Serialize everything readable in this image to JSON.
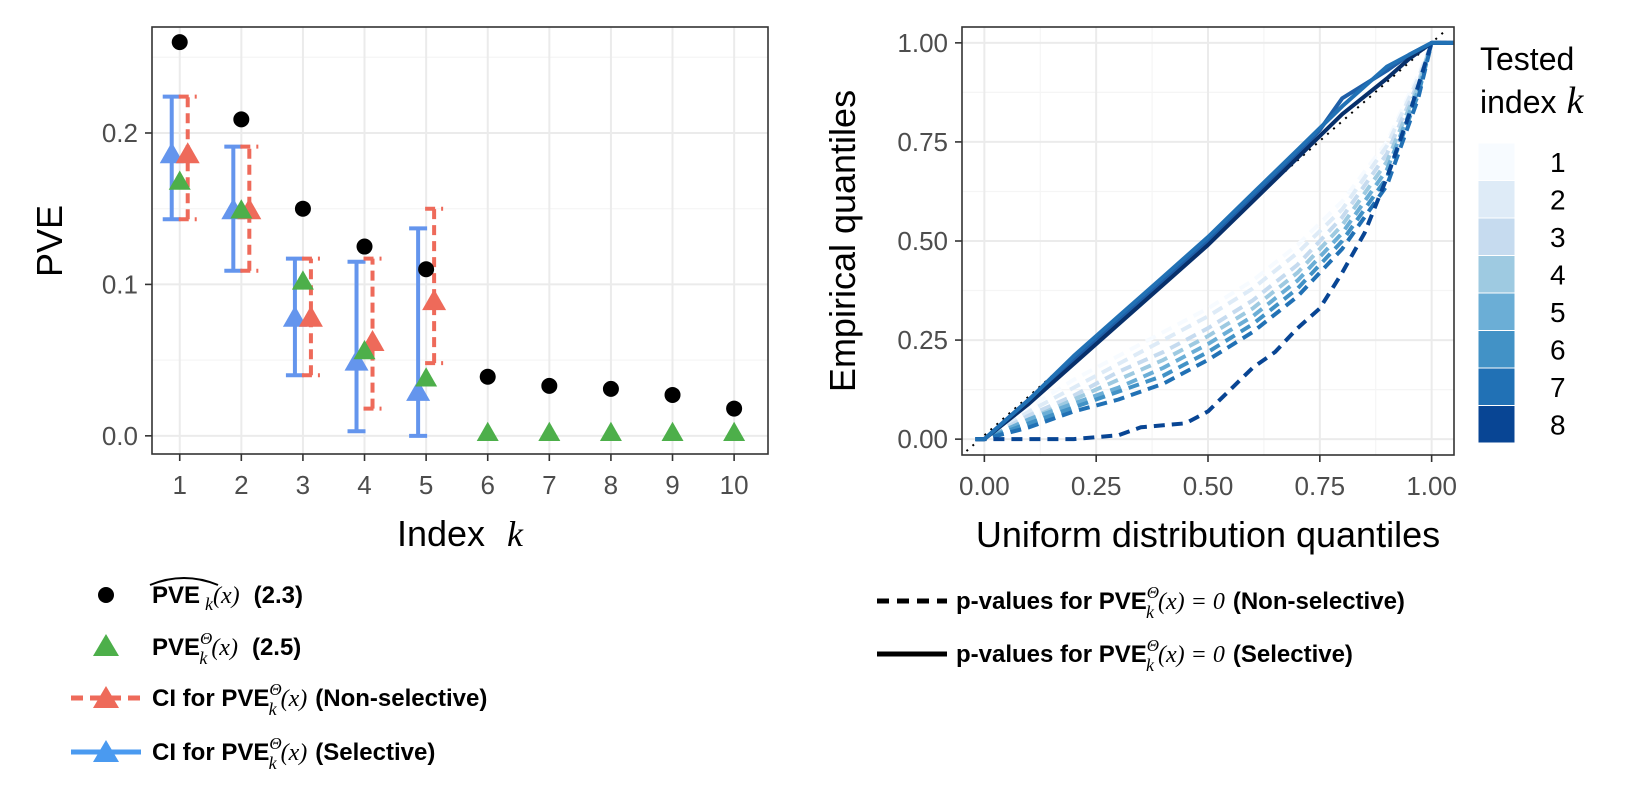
{
  "chart_data": [
    {
      "type": "scatter",
      "xlabel": "Index",
      "xlabel_var": "k",
      "ylabel": "PVE",
      "xlim": [
        0.55,
        10.55
      ],
      "ylim": [
        -0.012,
        0.27
      ],
      "x_ticks": [
        1,
        2,
        3,
        4,
        5,
        6,
        7,
        8,
        9,
        10
      ],
      "x_tick_labels": [
        "1",
        "2",
        "3",
        "4",
        "5",
        "6",
        "7",
        "8",
        "9",
        "10"
      ],
      "y_ticks": [
        0.0,
        0.1,
        0.2
      ],
      "y_tick_labels": [
        "0.0",
        "0.1",
        "0.2"
      ],
      "grid": true,
      "series": [
        {
          "name": "PVE hat_k(x) (2.3)",
          "marker": "circle",
          "color": "#000000",
          "x": [
            1,
            2,
            3,
            4,
            5,
            6,
            7,
            8,
            9,
            10
          ],
          "y": [
            0.26,
            0.209,
            0.15,
            0.125,
            0.11,
            0.039,
            0.033,
            0.031,
            0.027,
            0.018
          ]
        },
        {
          "name": "PVE_k^Theta(x) (2.5)",
          "marker": "triangle",
          "color": "#4daf4a",
          "x": [
            1,
            2,
            3,
            4,
            5,
            6,
            7,
            8,
            9,
            10
          ],
          "y": [
            0.168,
            0.149,
            0.102,
            0.056,
            0.038,
            0.002,
            0.002,
            0.002,
            0.002,
            0.002
          ]
        },
        {
          "name": "CI for PVE_k^Theta(x) (Non-selective)",
          "marker": "triangle",
          "color": "#ee6a5a",
          "linestyle": "dashed",
          "x": [
            1,
            2,
            3,
            4,
            5
          ],
          "y": [
            0.186,
            0.149,
            0.078,
            0.062,
            0.089
          ],
          "lower": [
            0.143,
            0.109,
            0.04,
            0.018,
            0.048
          ],
          "upper": [
            0.224,
            0.191,
            0.117,
            0.117,
            0.15
          ]
        },
        {
          "name": "CI for PVE_k^Theta(x) (Selective)",
          "marker": "triangle",
          "color": "#6495ed",
          "linestyle": "solid",
          "x": [
            1,
            2,
            3,
            4,
            5
          ],
          "y": [
            0.186,
            0.149,
            0.078,
            0.049,
            0.029
          ],
          "lower": [
            0.143,
            0.109,
            0.04,
            0.003,
            0.0
          ],
          "upper": [
            0.224,
            0.191,
            0.117,
            0.115,
            0.137
          ]
        }
      ]
    },
    {
      "type": "line",
      "xlabel": "Uniform distribution quantiles",
      "ylabel": "Empirical quantiles",
      "xlim": [
        -0.05,
        1.05
      ],
      "ylim": [
        -0.04,
        1.04
      ],
      "x_ticks": [
        0.0,
        0.25,
        0.5,
        0.75,
        1.0
      ],
      "x_tick_labels": [
        "0.00",
        "0.25",
        "0.50",
        "0.75",
        "1.00"
      ],
      "y_ticks": [
        0.0,
        0.25,
        0.5,
        0.75,
        1.0
      ],
      "y_tick_labels": [
        "0.00",
        "0.25",
        "0.50",
        "0.75",
        "1.00"
      ],
      "grid": true,
      "legend_title_line1": "Tested",
      "legend_title_line2": "index",
      "legend_title_var": "k",
      "legend_labels": [
        "1",
        "2",
        "3",
        "4",
        "5",
        "6",
        "7",
        "8"
      ],
      "legend_colors": [
        "#f7fbff",
        "#deebf7",
        "#c6dbef",
        "#9ecae1",
        "#6baed6",
        "#4292c6",
        "#2171b5",
        "#084594"
      ],
      "legend_placement": "right",
      "series": [
        {
          "name": "1",
          "linestyle": "dashed",
          "color": "#f7fbff",
          "x": [
            0,
            0.1,
            0.2,
            0.3,
            0.4,
            0.5,
            0.6,
            0.7,
            0.8,
            0.9,
            0.97,
            1
          ],
          "y": [
            0,
            0.08,
            0.15,
            0.21,
            0.27,
            0.33,
            0.4,
            0.49,
            0.6,
            0.75,
            0.92,
            1
          ]
        },
        {
          "name": "2",
          "linestyle": "dashed",
          "color": "#deebf7",
          "x": [
            0,
            0.1,
            0.2,
            0.3,
            0.4,
            0.5,
            0.6,
            0.7,
            0.8,
            0.9,
            0.97,
            1
          ],
          "y": [
            0,
            0.07,
            0.13,
            0.19,
            0.25,
            0.31,
            0.38,
            0.47,
            0.58,
            0.74,
            0.91,
            1
          ]
        },
        {
          "name": "3",
          "linestyle": "dashed",
          "color": "#c6dbef",
          "x": [
            0,
            0.1,
            0.2,
            0.3,
            0.4,
            0.5,
            0.6,
            0.7,
            0.8,
            0.9,
            0.97,
            1
          ],
          "y": [
            0,
            0.06,
            0.11,
            0.17,
            0.22,
            0.28,
            0.35,
            0.44,
            0.56,
            0.72,
            0.9,
            1
          ]
        },
        {
          "name": "4",
          "linestyle": "dashed",
          "color": "#9ecae1",
          "x": [
            0,
            0.1,
            0.2,
            0.3,
            0.4,
            0.5,
            0.6,
            0.7,
            0.8,
            0.9,
            0.97,
            1
          ],
          "y": [
            0,
            0.05,
            0.1,
            0.15,
            0.2,
            0.26,
            0.33,
            0.42,
            0.54,
            0.7,
            0.89,
            1
          ]
        },
        {
          "name": "5",
          "linestyle": "dashed",
          "color": "#6baed6",
          "x": [
            0,
            0.1,
            0.2,
            0.3,
            0.4,
            0.5,
            0.6,
            0.7,
            0.8,
            0.9,
            0.97,
            1
          ],
          "y": [
            0,
            0.05,
            0.09,
            0.13,
            0.18,
            0.24,
            0.31,
            0.4,
            0.52,
            0.68,
            0.88,
            1
          ]
        },
        {
          "name": "6",
          "linestyle": "dashed",
          "color": "#4292c6",
          "x": [
            0,
            0.1,
            0.2,
            0.3,
            0.4,
            0.5,
            0.6,
            0.7,
            0.8,
            0.9,
            0.97,
            1
          ],
          "y": [
            0,
            0.04,
            0.08,
            0.12,
            0.16,
            0.22,
            0.29,
            0.38,
            0.5,
            0.66,
            0.87,
            1
          ]
        },
        {
          "name": "7",
          "linestyle": "dashed",
          "color": "#2171b5",
          "x": [
            0,
            0.1,
            0.2,
            0.3,
            0.4,
            0.5,
            0.6,
            0.7,
            0.8,
            0.9,
            0.97,
            1
          ],
          "y": [
            0,
            0.03,
            0.07,
            0.1,
            0.14,
            0.2,
            0.27,
            0.36,
            0.48,
            0.64,
            0.86,
            1
          ]
        },
        {
          "name": "8",
          "linestyle": "dashed",
          "color": "#084594",
          "x": [
            0,
            0.1,
            0.2,
            0.3,
            0.35,
            0.45,
            0.5,
            0.6,
            0.65,
            0.7,
            0.75,
            0.8,
            0.85,
            0.9,
            0.95,
            1
          ],
          "y": [
            0,
            0.0,
            0.0,
            0.01,
            0.03,
            0.04,
            0.07,
            0.18,
            0.22,
            0.28,
            0.33,
            0.42,
            0.52,
            0.66,
            0.82,
            1
          ]
        },
        {
          "name": "selective",
          "linestyle": "solid",
          "color": "#1f5fa8",
          "x": [
            0,
            0.1,
            0.2,
            0.3,
            0.4,
            0.5,
            0.6,
            0.7,
            0.75,
            0.8,
            0.9,
            0.95,
            1
          ],
          "y": [
            0,
            0.1,
            0.2,
            0.3,
            0.4,
            0.5,
            0.61,
            0.72,
            0.78,
            0.86,
            0.93,
            0.97,
            1
          ]
        },
        {
          "name": "selective-2",
          "linestyle": "solid",
          "color": "#08306b",
          "x": [
            0,
            0.1,
            0.2,
            0.3,
            0.4,
            0.5,
            0.6,
            0.7,
            0.8,
            0.9,
            0.95,
            1
          ],
          "y": [
            0,
            0.09,
            0.19,
            0.29,
            0.39,
            0.49,
            0.6,
            0.71,
            0.82,
            0.91,
            0.96,
            1
          ]
        },
        {
          "name": "selective-3",
          "linestyle": "solid",
          "color": "#2171b5",
          "x": [
            0,
            0.1,
            0.2,
            0.3,
            0.4,
            0.5,
            0.6,
            0.7,
            0.8,
            0.9,
            1
          ],
          "y": [
            0,
            0.1,
            0.21,
            0.31,
            0.41,
            0.51,
            0.62,
            0.73,
            0.84,
            0.94,
            1
          ]
        }
      ]
    }
  ],
  "legend_left": [
    {
      "label": "PVE",
      "sub": "k",
      "tail": "(x)",
      "ref": "(2.3)",
      "hat": true
    },
    {
      "label": "PVE",
      "sup": "Θ",
      "sub": "k",
      "tail": "(x)",
      "ref": "(2.5)"
    },
    {
      "label": "CI for PVE",
      "sup": "Θ",
      "sub": "k",
      "tail": "(x)",
      "ref": "(Non-selective)"
    },
    {
      "label": "CI for PVE",
      "sup": "Θ",
      "sub": "k",
      "tail": "(x)",
      "ref": "(Selective)"
    }
  ],
  "legend_right": [
    {
      "label": "p-values for PVE",
      "sup": "Θ",
      "sub": "k",
      "tail": "(x) = 0",
      "ref": "(Non-selective)"
    },
    {
      "label": "p-values for PVE",
      "sup": "Θ",
      "sub": "k",
      "tail": "(x) = 0",
      "ref": "(Selective)"
    }
  ]
}
